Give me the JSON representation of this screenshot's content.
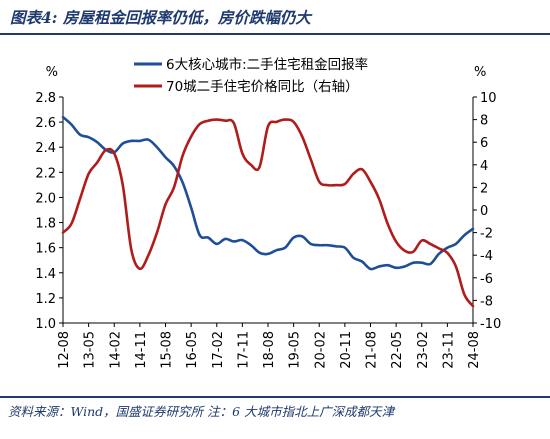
{
  "figure": {
    "title": "图表4:  房屋租金回报率仍低，房价跌幅仍大",
    "source": "资料来源：Wind，国盛证券研究所  注：6 大城市指北上广深成都天津"
  },
  "chart_data": {
    "type": "line",
    "left_unit": "%",
    "right_unit": "%",
    "left_ylim": [
      1.0,
      2.8
    ],
    "left_ticks": [
      "1.0",
      "1.2",
      "1.4",
      "1.6",
      "1.8",
      "2.0",
      "2.2",
      "2.4",
      "2.6",
      "2.8"
    ],
    "right_ylim": [
      -10,
      10
    ],
    "right_ticks": [
      "-10",
      "-8",
      "-6",
      "-4",
      "-2",
      "0",
      "2",
      "4",
      "6",
      "8",
      "10"
    ],
    "x_ticks": [
      "12-08",
      "13-05",
      "14-02",
      "14-11",
      "15-08",
      "16-05",
      "17-02",
      "17-11",
      "18-08",
      "19-05",
      "20-02",
      "20-11",
      "21-08",
      "22-05",
      "23-02",
      "23-11",
      "24-08"
    ],
    "legend_position": "top-right",
    "series": [
      {
        "name": "6大核心城市:二手住宅租金回报率",
        "axis": "left",
        "color": "#1f4e99",
        "x": [
          "12-08",
          "12-11",
          "13-02",
          "13-05",
          "13-08",
          "13-11",
          "14-02",
          "14-05",
          "14-08",
          "14-11",
          "15-02",
          "15-05",
          "15-08",
          "15-11",
          "16-02",
          "16-05",
          "16-08",
          "16-11",
          "17-02",
          "17-05",
          "17-08",
          "17-11",
          "18-02",
          "18-05",
          "18-08",
          "18-11",
          "19-02",
          "19-05",
          "19-08",
          "19-11",
          "20-02",
          "20-05",
          "20-08",
          "20-11",
          "21-02",
          "21-05",
          "21-08",
          "21-11",
          "22-02",
          "22-05",
          "22-08",
          "22-11",
          "23-02",
          "23-05",
          "23-08",
          "23-11",
          "24-02",
          "24-05",
          "24-08"
        ],
        "values": [
          2.64,
          2.58,
          2.5,
          2.48,
          2.44,
          2.38,
          2.36,
          2.43,
          2.45,
          2.45,
          2.46,
          2.4,
          2.32,
          2.25,
          2.12,
          1.92,
          1.7,
          1.68,
          1.63,
          1.67,
          1.65,
          1.66,
          1.62,
          1.56,
          1.55,
          1.58,
          1.6,
          1.68,
          1.69,
          1.63,
          1.62,
          1.62,
          1.61,
          1.6,
          1.52,
          1.49,
          1.43,
          1.45,
          1.46,
          1.44,
          1.45,
          1.48,
          1.48,
          1.47,
          1.55,
          1.6,
          1.63,
          1.7,
          1.75
        ]
      },
      {
        "name": "70城二手住宅价格同比（右轴）",
        "axis": "right",
        "color": "#b01c1c",
        "x": [
          "12-08",
          "12-11",
          "13-02",
          "13-05",
          "13-08",
          "13-11",
          "14-02",
          "14-05",
          "14-08",
          "14-11",
          "15-02",
          "15-05",
          "15-08",
          "15-11",
          "16-02",
          "16-05",
          "16-08",
          "16-11",
          "17-02",
          "17-05",
          "17-08",
          "17-11",
          "18-02",
          "18-05",
          "18-08",
          "18-11",
          "19-02",
          "19-05",
          "19-08",
          "19-11",
          "20-02",
          "20-05",
          "20-08",
          "20-11",
          "21-02",
          "21-05",
          "21-08",
          "21-11",
          "22-02",
          "22-05",
          "22-08",
          "22-11",
          "23-02",
          "23-05",
          "23-08",
          "23-11",
          "24-02",
          "24-05",
          "24-08"
        ],
        "values": [
          -2.0,
          -1.2,
          1.0,
          3.2,
          4.2,
          5.3,
          5.0,
          2.2,
          -3.5,
          -5.2,
          -4.0,
          -2.0,
          0.5,
          2.0,
          4.8,
          6.5,
          7.6,
          7.9,
          8.0,
          7.9,
          7.7,
          5.0,
          4.0,
          3.8,
          7.4,
          7.8,
          8.0,
          7.8,
          6.5,
          4.5,
          2.5,
          2.2,
          2.2,
          2.3,
          3.2,
          3.6,
          2.5,
          1.0,
          -1.2,
          -2.8,
          -3.6,
          -3.7,
          -2.7,
          -3.0,
          -3.4,
          -3.8,
          -5.0,
          -7.5,
          -8.5
        ]
      }
    ]
  }
}
